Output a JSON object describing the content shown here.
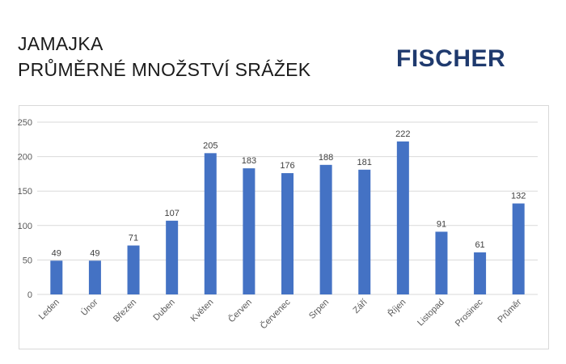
{
  "header": {
    "title_line1": "JAMAJKA",
    "title_line2": "PRŮMĚRNÉ MNOŽSTVÍ SRÁŽEK",
    "logo_text": "FISCHER"
  },
  "colors": {
    "bar": "#4472c4",
    "logo": "#1f3a6e",
    "gridline": "#d9d9d9"
  },
  "chart_data": {
    "type": "bar",
    "title": "",
    "xlabel": "",
    "ylabel": "",
    "ylim": [
      0,
      250
    ],
    "yticks": [
      0,
      50,
      100,
      150,
      200,
      250
    ],
    "grid": true,
    "categories": [
      "Leden",
      "Únor",
      "Březen",
      "Duben",
      "Květen",
      "Červen",
      "Červenec",
      "Srpen",
      "Září",
      "Říjen",
      "Listopad",
      "Prosinec",
      "Průměr"
    ],
    "values": [
      49,
      49,
      71,
      107,
      205,
      183,
      176,
      188,
      181,
      222,
      91,
      61,
      132
    ]
  }
}
